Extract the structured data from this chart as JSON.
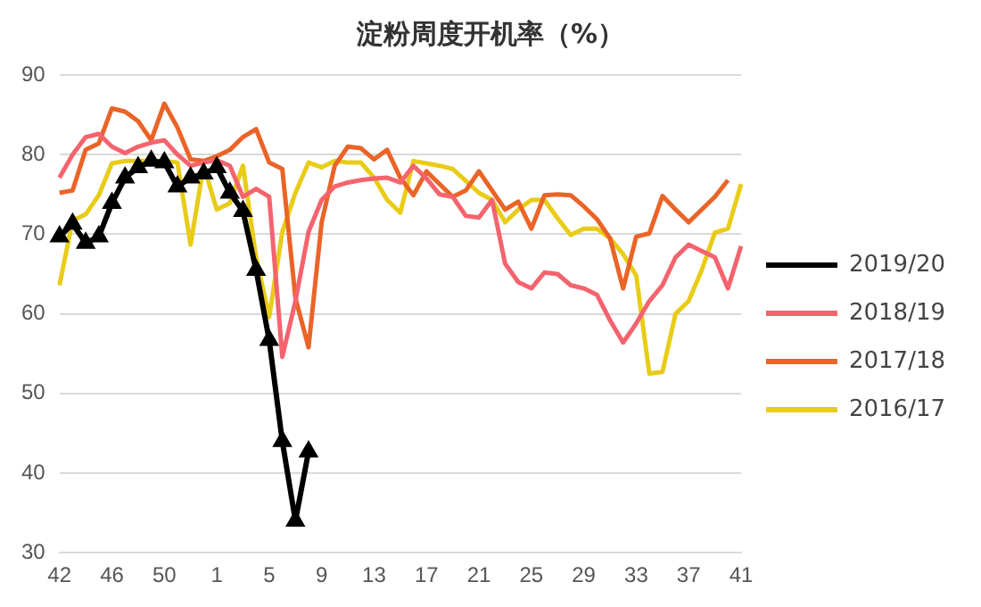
{
  "chart_data": {
    "type": "line",
    "title": "淀粉周度开机率（%）",
    "categories": [
      "42",
      null,
      null,
      null,
      "46",
      null,
      null,
      null,
      "50",
      null,
      null,
      null,
      "1",
      null,
      null,
      null,
      "5",
      null,
      null,
      null,
      "9",
      null,
      null,
      null,
      "13",
      null,
      null,
      null,
      "17",
      null,
      null,
      null,
      "21",
      null,
      null,
      null,
      "25",
      null,
      null,
      null,
      "29",
      null,
      null,
      null,
      "33",
      null,
      null,
      null,
      "37",
      null,
      null,
      null,
      "41"
    ],
    "series": [
      {
        "name": "2019/20",
        "color": "#000000",
        "marker": "triangle",
        "values": [
          69.7,
          71.3,
          68.9,
          69.7,
          73.9,
          77.1,
          78.4,
          79.2,
          79.0,
          76.0,
          77.1,
          77.6,
          78.4,
          75.2,
          72.9,
          65.5,
          56.7,
          44.0,
          34.0,
          42.7,
          null,
          null,
          null,
          null,
          null,
          null,
          null,
          null,
          null,
          null,
          null,
          null,
          null,
          null,
          null,
          null,
          null,
          null,
          null,
          null,
          null,
          null,
          null,
          null,
          null,
          null,
          null,
          null,
          null,
          null,
          null,
          null,
          null
        ]
      },
      {
        "name": "2018/19",
        "color": "#f4646e",
        "values": [
          77.1,
          80,
          82.2,
          82.6,
          81,
          80.2,
          81,
          81.5,
          81.8,
          80,
          78.6,
          79,
          79.3,
          78.6,
          74.7,
          75.7,
          74.7,
          54.6,
          61.6,
          70.3,
          74.3,
          76,
          76.5,
          76.8,
          77,
          77.1,
          76.5,
          78.6,
          77,
          75,
          74.7,
          72.3,
          72.1,
          74.3,
          66.3,
          64,
          63.2,
          65.2,
          65,
          63.6,
          63.2,
          62.4,
          59.2,
          56.4,
          58.8,
          61.6,
          63.6,
          67.1,
          68.7,
          67.9,
          67.1,
          63.2,
          68.5
        ]
      },
      {
        "name": "2017/18",
        "color": "#ea6428",
        "values": [
          75.2,
          75.5,
          80.6,
          81.4,
          85.8,
          85.4,
          84.2,
          81.8,
          86.4,
          83.4,
          79.4,
          79.2,
          79.8,
          80.6,
          82.2,
          83.2,
          79,
          78.2,
          62,
          55.8,
          71.5,
          78.6,
          81,
          80.8,
          79.4,
          80.6,
          77.1,
          74.9,
          77.9,
          76.3,
          74.7,
          75.5,
          77.9,
          75.5,
          73.1,
          74.1,
          70.7,
          74.9,
          75,
          74.9,
          73.5,
          71.9,
          69.5,
          63.2,
          69.7,
          70.1,
          74.8,
          73.1,
          71.5,
          73.1,
          74.7,
          76.8,
          null
        ]
      },
      {
        "name": "2016/17",
        "color": "#e8cc18",
        "values": [
          63.6,
          71.7,
          72.5,
          74.9,
          78.9,
          79.2,
          79.2,
          79.2,
          79.2,
          79,
          68.7,
          78.6,
          73.1,
          73.9,
          78.6,
          67.1,
          59.6,
          70.3,
          75.2,
          79,
          78.4,
          79.2,
          79,
          79,
          77.1,
          74.3,
          72.7,
          79.2,
          78.9,
          78.6,
          78.2,
          76.7,
          75.2,
          74.3,
          71.5,
          73.1,
          74.3,
          74.3,
          72,
          69.9,
          70.7,
          70.7,
          69.5,
          67.5,
          64.8,
          52.5,
          52.7,
          60,
          61.6,
          65.5,
          70.2,
          70.7,
          76.3
        ]
      }
    ],
    "ylim": [
      30,
      90
    ],
    "yticks": [
      30,
      40,
      50,
      60,
      70,
      80,
      90
    ],
    "grid": "y",
    "legend": "right"
  }
}
